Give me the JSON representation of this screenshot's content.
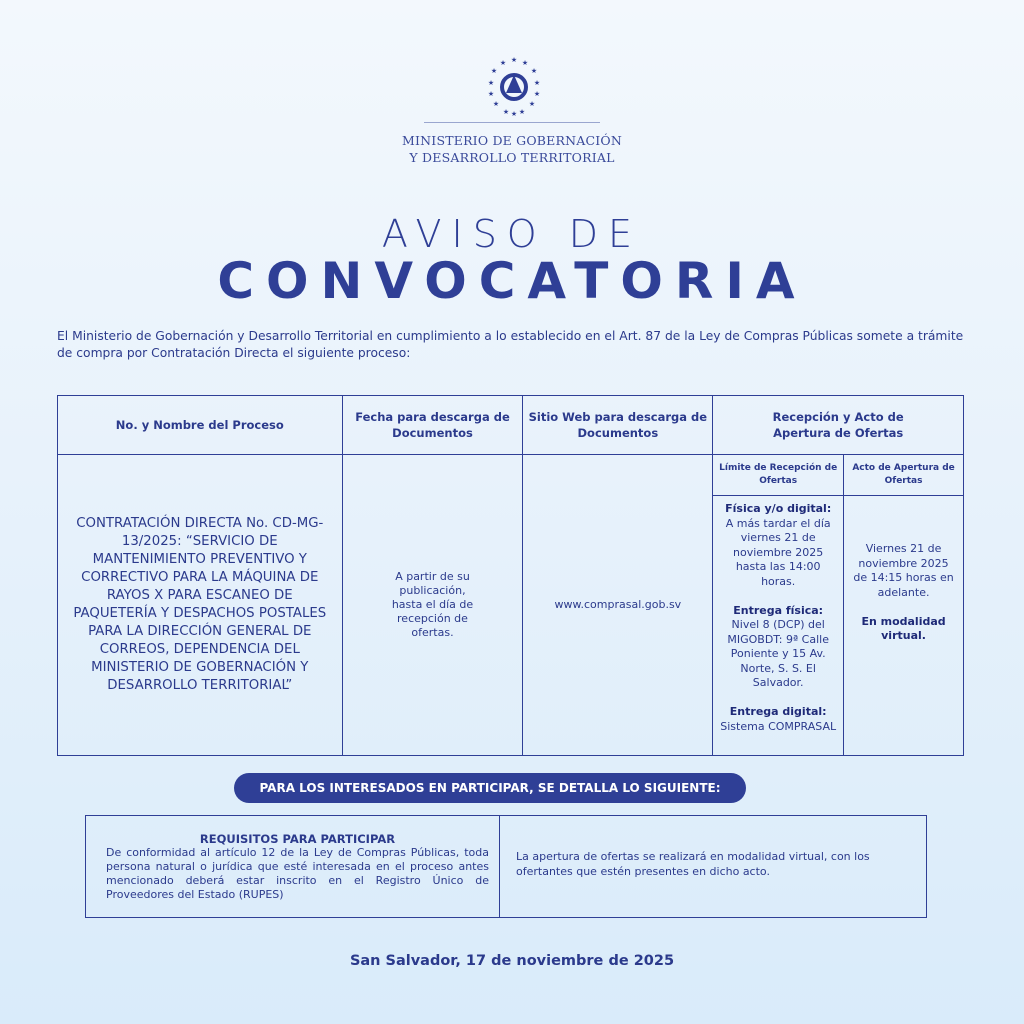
{
  "header": {
    "ministry_line1": "MINISTERIO DE GOBERNACIÓN",
    "ministry_line2": "Y DESARROLLO TERRITORIAL",
    "emblem": "el-salvador-coat-of-arms"
  },
  "title": {
    "line1": "AVISO DE",
    "line2": "CONVOCATORIA"
  },
  "intro": "El Ministerio de Gobernación y Desarrollo Territorial en cumplimiento a lo establecido en el Art. 87 de la Ley de Compras Públicas somete a trámite de compra por Contratación Directa el siguiente proceso:",
  "table": {
    "headers": [
      "No. y Nombre del Proceso",
      "Fecha para descarga de Documentos",
      "Sitio Web para descarga de Documentos",
      "Recepción y Acto de Apertura de Ofertas"
    ],
    "subheaders": [
      "Límite de Recepción de Ofertas",
      "Acto de Apertura de Ofertas"
    ],
    "process": "CONTRATACIÓN DIRECTA No. CD-MG-13/2025: “SERVICIO DE MANTENIMIENTO PREVENTIVO Y CORRECTIVO PARA LA MÁQUINA DE RAYOS X PARA ESCANEO DE PAQUETERÍA Y DESPACHOS POSTALES PARA LA DIRECCIÓN GENERAL DE CORREOS, DEPENDENCIA DEL MINISTERIO DE GOBERNACIÓN Y DESARROLLO TERRITORIAL”",
    "download_date": "A partir de su publicación, hasta el día de recepción de ofertas.",
    "website": "www.comprasal.gob.sv",
    "limit": {
      "h1": "Física y/o digital:",
      "t1": "A más tardar el día viernes 21 de noviembre 2025 hasta las 14:00 horas.",
      "h2": "Entrega física:",
      "t2": "Nivel 8 (DCP) del MIGOBDT: 9ª Calle Poniente y 15 Av. Norte, S. S. El Salvador.",
      "h3": "Entrega digital:",
      "t3": "Sistema COMPRASAL"
    },
    "opening": {
      "text": "Viernes 21 de noviembre 2025 de 14:15 horas en adelante.",
      "mode": "En modalidad virtual."
    }
  },
  "banner": "PARA LOS INTERESADOS EN PARTICIPAR, SE DETALLA LO SIGUIENTE:",
  "requirements": {
    "title": "REQUISITOS PARA PARTICIPAR",
    "text": "De conformidad al artículo 12 de la Ley de Compras Públicas, toda persona natural o jurídica que esté interesada en el proceso antes mencionado deberá estar inscrito en el Registro Único de Proveedores del Estado (RUPES)",
    "note": "La apertura de ofertas se realizará en modalidad virtual, con los ofertantes que estén presentes en dicho acto."
  },
  "footer": "San Salvador, 17 de noviembre de 2025",
  "colors": {
    "primary": "#2f3f96",
    "background": "#e8f2fb"
  }
}
